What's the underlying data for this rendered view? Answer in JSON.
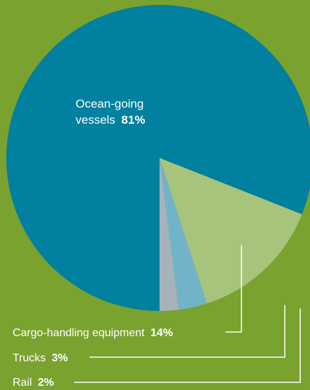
{
  "chart_data": {
    "type": "pie",
    "title": "",
    "slices": [
      {
        "label": "Ocean-going vessels",
        "value": 81,
        "display": "81%",
        "color": "#01809f"
      },
      {
        "label": "Cargo-handling equipment",
        "value": 14,
        "display": "14%",
        "color": "#a7c47d"
      },
      {
        "label": "Trucks",
        "value": 3,
        "display": "3%",
        "color": "#71b4c8"
      },
      {
        "label": "Rail",
        "value": 2,
        "display": "2%",
        "color": "#a6b2bc"
      }
    ],
    "inner_label": {
      "line1": "Ocean-going",
      "line2": "vessels"
    },
    "leader_color": "#ffffff",
    "background_color": "#7aa22f"
  }
}
